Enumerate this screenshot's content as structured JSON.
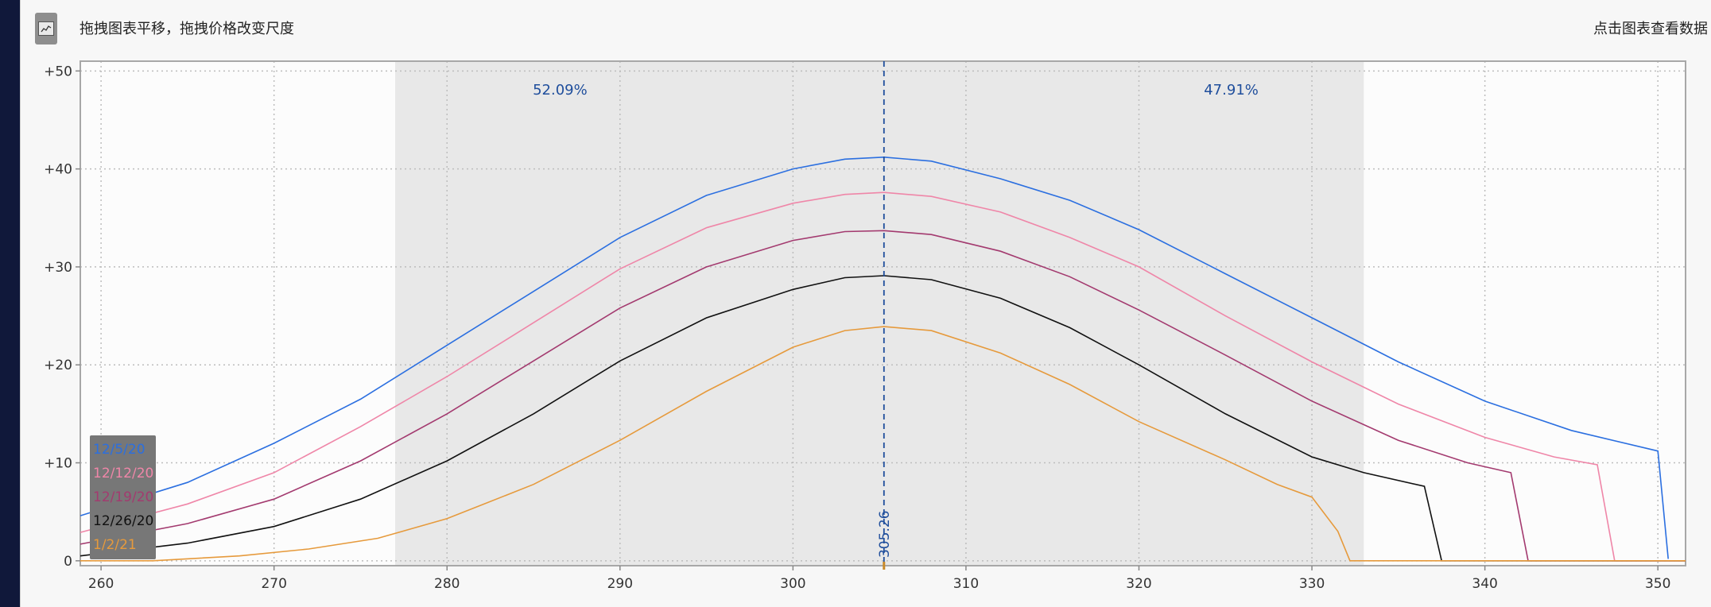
{
  "header": {
    "hint_left": "拖拽图表平移，拖拽价格改变尺度",
    "hint_right": "点击图表查看数据"
  },
  "icons": {
    "chart_toggle": "line-chart-icon"
  },
  "chart_data": {
    "type": "line",
    "title": "",
    "xlabel": "",
    "ylabel": "",
    "xlim": [
      258.8,
      351.6
    ],
    "ylim": [
      -0.5,
      51
    ],
    "x_ticks": [
      260,
      270,
      280,
      290,
      300,
      310,
      320,
      330,
      340,
      350
    ],
    "y_ticks": [
      0,
      10,
      20,
      30,
      40,
      50
    ],
    "y_tick_labels": [
      "0",
      "+10",
      "+20",
      "+30",
      "+40",
      "+50"
    ],
    "grid": true,
    "legend_placement": "bottom-left",
    "shaded_range": [
      277,
      333
    ],
    "shaded_color": "#e8e8e8",
    "price_line": {
      "x": 305.26,
      "label": "305.26",
      "color": "#1f4e9c"
    },
    "left_pct": "52.09%",
    "right_pct": "47.91%",
    "series": [
      {
        "name": "12/5/20",
        "color": "#2b6fe0",
        "points": [
          [
            258.8,
            4.6
          ],
          [
            265,
            8.0
          ],
          [
            270,
            12.0
          ],
          [
            275,
            16.5
          ],
          [
            280,
            22.0
          ],
          [
            285,
            27.5
          ],
          [
            290,
            33.0
          ],
          [
            295,
            37.3
          ],
          [
            300,
            40.0
          ],
          [
            303,
            41.0
          ],
          [
            305.26,
            41.2
          ],
          [
            308,
            40.8
          ],
          [
            312,
            39.0
          ],
          [
            316,
            36.8
          ],
          [
            320,
            33.8
          ],
          [
            325,
            29.3
          ],
          [
            330,
            24.8
          ],
          [
            335,
            20.3
          ],
          [
            340,
            16.3
          ],
          [
            345,
            13.3
          ],
          [
            350,
            11.2
          ],
          [
            350.6,
            0.2
          ]
        ]
      },
      {
        "name": "12/12/20",
        "color": "#ef86a8",
        "points": [
          [
            258.8,
            2.9
          ],
          [
            265,
            5.8
          ],
          [
            270,
            9.0
          ],
          [
            275,
            13.7
          ],
          [
            280,
            18.8
          ],
          [
            285,
            24.3
          ],
          [
            290,
            29.8
          ],
          [
            295,
            34.0
          ],
          [
            300,
            36.5
          ],
          [
            303,
            37.4
          ],
          [
            305.26,
            37.6
          ],
          [
            308,
            37.2
          ],
          [
            312,
            35.6
          ],
          [
            316,
            33.0
          ],
          [
            320,
            30.0
          ],
          [
            325,
            25.0
          ],
          [
            330,
            20.3
          ],
          [
            335,
            16.0
          ],
          [
            340,
            12.6
          ],
          [
            344,
            10.6
          ],
          [
            346.5,
            9.8
          ],
          [
            347.5,
            0.0
          ],
          [
            351.6,
            0.0
          ]
        ]
      },
      {
        "name": "12/19/20",
        "color": "#a33a6f",
        "points": [
          [
            258.8,
            1.7
          ],
          [
            265,
            3.8
          ],
          [
            270,
            6.3
          ],
          [
            275,
            10.2
          ],
          [
            280,
            15.0
          ],
          [
            285,
            20.4
          ],
          [
            290,
            25.8
          ],
          [
            295,
            30.0
          ],
          [
            300,
            32.7
          ],
          [
            303,
            33.6
          ],
          [
            305.26,
            33.7
          ],
          [
            308,
            33.3
          ],
          [
            312,
            31.6
          ],
          [
            316,
            29.0
          ],
          [
            320,
            25.6
          ],
          [
            325,
            21.0
          ],
          [
            330,
            16.3
          ],
          [
            335,
            12.3
          ],
          [
            339,
            10.0
          ],
          [
            341.5,
            9.0
          ],
          [
            342.5,
            0.0
          ],
          [
            351.6,
            0.0
          ]
        ]
      },
      {
        "name": "12/26/20",
        "color": "#111111",
        "points": [
          [
            258.8,
            0.5
          ],
          [
            265,
            1.8
          ],
          [
            270,
            3.5
          ],
          [
            275,
            6.3
          ],
          [
            280,
            10.2
          ],
          [
            285,
            15.0
          ],
          [
            290,
            20.4
          ],
          [
            295,
            24.8
          ],
          [
            300,
            27.7
          ],
          [
            303,
            28.9
          ],
          [
            305.26,
            29.1
          ],
          [
            308,
            28.7
          ],
          [
            312,
            26.8
          ],
          [
            316,
            23.8
          ],
          [
            320,
            20.0
          ],
          [
            325,
            15.0
          ],
          [
            330,
            10.6
          ],
          [
            333,
            9.0
          ],
          [
            336.5,
            7.6
          ],
          [
            337.5,
            0.0
          ],
          [
            351.6,
            0.0
          ]
        ]
      },
      {
        "name": "1/2/21",
        "color": "#e69a3c",
        "points": [
          [
            258.8,
            0.0
          ],
          [
            263,
            0.0
          ],
          [
            268,
            0.5
          ],
          [
            272,
            1.2
          ],
          [
            276,
            2.3
          ],
          [
            280,
            4.3
          ],
          [
            285,
            7.8
          ],
          [
            290,
            12.3
          ],
          [
            295,
            17.3
          ],
          [
            300,
            21.8
          ],
          [
            303,
            23.5
          ],
          [
            305.26,
            23.9
          ],
          [
            308,
            23.5
          ],
          [
            312,
            21.2
          ],
          [
            316,
            18.0
          ],
          [
            320,
            14.2
          ],
          [
            325,
            10.3
          ],
          [
            328,
            7.8
          ],
          [
            330,
            6.5
          ],
          [
            331.5,
            3.0
          ],
          [
            332.2,
            0.0
          ],
          [
            351.6,
            0.0
          ]
        ]
      }
    ]
  }
}
